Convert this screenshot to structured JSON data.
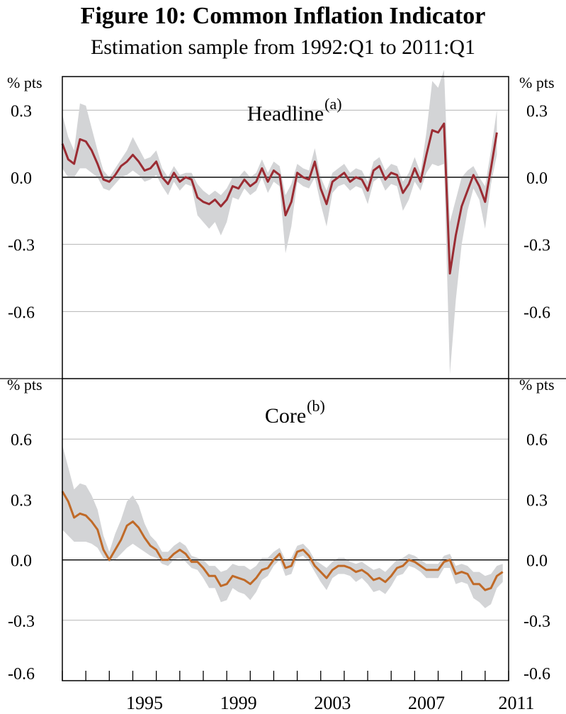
{
  "title": "Figure 10: Common Inflation Indicator",
  "subtitle": "Estimation sample from 1992:Q1 to 2011:Q1",
  "chart_data": [
    {
      "type": "line",
      "panel_label": "Headline",
      "panel_note": "(a)",
      "unit_left": "% pts",
      "unit_right": "% pts",
      "x_start": 1992.0,
      "x_step": 0.25,
      "x_ticks": [
        "1995",
        "1999",
        "2003",
        "2007",
        "2011"
      ],
      "ylim": [
        -0.9,
        0.45
      ],
      "y_ticks": [
        "0.3",
        "0.0",
        "-0.3",
        "-0.6"
      ],
      "colors": {
        "line": "#9b2c33",
        "band": "#d3d4d6"
      },
      "series": [
        {
          "values": [
            0.15,
            0.08,
            0.06,
            0.17,
            0.16,
            0.12,
            0.06,
            -0.01,
            -0.02,
            0.01,
            0.05,
            0.07,
            0.1,
            0.07,
            0.03,
            0.04,
            0.07,
            0.0,
            -0.03,
            0.02,
            -0.02,
            0.0,
            -0.01,
            -0.09,
            -0.11,
            -0.12,
            -0.1,
            -0.13,
            -0.1,
            -0.04,
            -0.05,
            -0.01,
            -0.04,
            -0.02,
            0.04,
            -0.02,
            0.03,
            0.01,
            -0.17,
            -0.11,
            0.02,
            0.0,
            -0.01,
            0.07,
            -0.05,
            -0.12,
            -0.02,
            0.0,
            0.02,
            -0.02,
            0.0,
            -0.01,
            -0.06,
            0.03,
            0.05,
            -0.01,
            0.02,
            0.01,
            -0.07,
            -0.03,
            0.04,
            -0.02,
            0.1,
            0.21,
            0.2,
            0.24,
            -0.43,
            -0.26,
            -0.13,
            -0.06,
            0.01,
            -0.04,
            -0.11,
            0.04,
            0.2
          ]
        }
      ],
      "band_upper": [
        0.28,
        0.18,
        0.12,
        0.33,
        0.32,
        0.22,
        0.12,
        0.03,
        0.0,
        0.04,
        0.08,
        0.12,
        0.18,
        0.13,
        0.08,
        0.09,
        0.12,
        0.04,
        0.0,
        0.05,
        0.01,
        0.02,
        0.02,
        -0.03,
        -0.06,
        -0.08,
        -0.06,
        -0.08,
        -0.05,
        0.0,
        0.0,
        0.03,
        0.0,
        0.02,
        0.08,
        0.02,
        0.07,
        0.05,
        -0.08,
        -0.03,
        0.06,
        0.04,
        0.03,
        0.13,
        0.0,
        -0.06,
        0.02,
        0.04,
        0.06,
        0.02,
        0.04,
        0.03,
        -0.02,
        0.07,
        0.09,
        0.03,
        0.06,
        0.05,
        -0.02,
        0.02,
        0.09,
        0.02,
        0.2,
        0.43,
        0.4,
        0.48,
        -0.2,
        -0.1,
        0.0,
        0.03,
        0.05,
        0.0,
        -0.04,
        0.12,
        0.3
      ],
      "band_lower": [
        0.04,
        0.0,
        0.0,
        0.04,
        0.04,
        0.02,
        0.0,
        -0.05,
        -0.06,
        -0.03,
        0.0,
        0.01,
        0.03,
        0.01,
        -0.02,
        -0.01,
        0.01,
        -0.04,
        -0.08,
        -0.02,
        -0.06,
        -0.03,
        -0.04,
        -0.17,
        -0.2,
        -0.23,
        -0.2,
        -0.26,
        -0.2,
        -0.09,
        -0.1,
        -0.05,
        -0.08,
        -0.06,
        0.0,
        -0.07,
        -0.02,
        -0.04,
        -0.34,
        -0.22,
        -0.02,
        -0.04,
        -0.05,
        0.0,
        -0.12,
        -0.22,
        -0.07,
        -0.04,
        -0.03,
        -0.06,
        -0.04,
        -0.05,
        -0.12,
        -0.02,
        0.0,
        -0.06,
        -0.03,
        -0.04,
        -0.15,
        -0.1,
        -0.02,
        -0.06,
        0.02,
        0.06,
        0.05,
        0.06,
        -0.88,
        -0.55,
        -0.3,
        -0.15,
        -0.05,
        -0.1,
        -0.23,
        -0.03,
        0.1
      ]
    },
    {
      "type": "line",
      "panel_label": "Core",
      "panel_note": "(b)",
      "unit_left": "% pts",
      "unit_right": "% pts",
      "x_start": 1992.0,
      "x_step": 0.25,
      "x_ticks": [
        "1995",
        "1999",
        "2003",
        "2007",
        "2011"
      ],
      "ylim": [
        -0.6,
        0.9
      ],
      "y_ticks": [
        "0.6",
        "0.3",
        "0.0",
        "-0.3",
        "-0.6"
      ],
      "colors": {
        "line": "#c06a28",
        "band": "#d3d4d6"
      },
      "series": [
        {
          "values": [
            0.34,
            0.29,
            0.21,
            0.23,
            0.22,
            0.19,
            0.15,
            0.05,
            0.0,
            0.05,
            0.1,
            0.17,
            0.19,
            0.16,
            0.11,
            0.07,
            0.05,
            0.0,
            0.0,
            0.03,
            0.05,
            0.03,
            -0.01,
            -0.01,
            -0.04,
            -0.08,
            -0.08,
            -0.13,
            -0.12,
            -0.08,
            -0.09,
            -0.1,
            -0.12,
            -0.09,
            -0.05,
            -0.04,
            0.0,
            0.03,
            -0.04,
            -0.03,
            0.04,
            0.05,
            0.02,
            -0.03,
            -0.06,
            -0.09,
            -0.05,
            -0.03,
            -0.03,
            -0.04,
            -0.06,
            -0.05,
            -0.07,
            -0.1,
            -0.09,
            -0.11,
            -0.08,
            -0.04,
            -0.03,
            0.0,
            -0.01,
            -0.03,
            -0.05,
            -0.05,
            -0.05,
            -0.01,
            0.0,
            -0.07,
            -0.06,
            -0.07,
            -0.12,
            -0.12,
            -0.15,
            -0.14,
            -0.08,
            -0.06
          ]
        }
      ],
      "band_upper": [
        0.57,
        0.46,
        0.35,
        0.38,
        0.37,
        0.32,
        0.25,
        0.12,
        0.04,
        0.13,
        0.2,
        0.29,
        0.32,
        0.27,
        0.18,
        0.12,
        0.09,
        0.04,
        0.04,
        0.07,
        0.09,
        0.07,
        0.02,
        0.01,
        0.0,
        -0.03,
        -0.03,
        -0.06,
        -0.05,
        -0.02,
        -0.03,
        -0.03,
        -0.05,
        -0.03,
        0.01,
        0.01,
        0.04,
        0.06,
        0.0,
        0.01,
        0.07,
        0.08,
        0.05,
        0.0,
        -0.02,
        -0.04,
        -0.01,
        0.01,
        0.01,
        -0.01,
        -0.02,
        -0.01,
        -0.03,
        -0.05,
        -0.04,
        -0.06,
        -0.03,
        0.0,
        0.01,
        0.03,
        0.02,
        0.0,
        -0.02,
        -0.02,
        -0.02,
        0.02,
        0.03,
        -0.03,
        -0.02,
        -0.03,
        -0.06,
        -0.06,
        -0.08,
        -0.07,
        -0.03,
        -0.02
      ],
      "band_lower": [
        0.15,
        0.12,
        0.09,
        0.09,
        0.09,
        0.08,
        0.06,
        0.01,
        -0.01,
        0.0,
        0.03,
        0.06,
        0.08,
        0.06,
        0.04,
        0.02,
        0.01,
        -0.02,
        -0.03,
        0.0,
        0.01,
        -0.01,
        -0.04,
        -0.05,
        -0.09,
        -0.14,
        -0.14,
        -0.21,
        -0.2,
        -0.14,
        -0.16,
        -0.17,
        -0.2,
        -0.16,
        -0.1,
        -0.08,
        -0.03,
        0.0,
        -0.08,
        -0.07,
        0.01,
        0.02,
        -0.01,
        -0.06,
        -0.11,
        -0.15,
        -0.09,
        -0.07,
        -0.07,
        -0.08,
        -0.11,
        -0.09,
        -0.12,
        -0.16,
        -0.15,
        -0.17,
        -0.13,
        -0.08,
        -0.07,
        -0.03,
        -0.04,
        -0.06,
        -0.09,
        -0.09,
        -0.09,
        -0.04,
        -0.04,
        -0.12,
        -0.11,
        -0.12,
        -0.19,
        -0.21,
        -0.24,
        -0.22,
        -0.14,
        -0.11
      ]
    }
  ]
}
